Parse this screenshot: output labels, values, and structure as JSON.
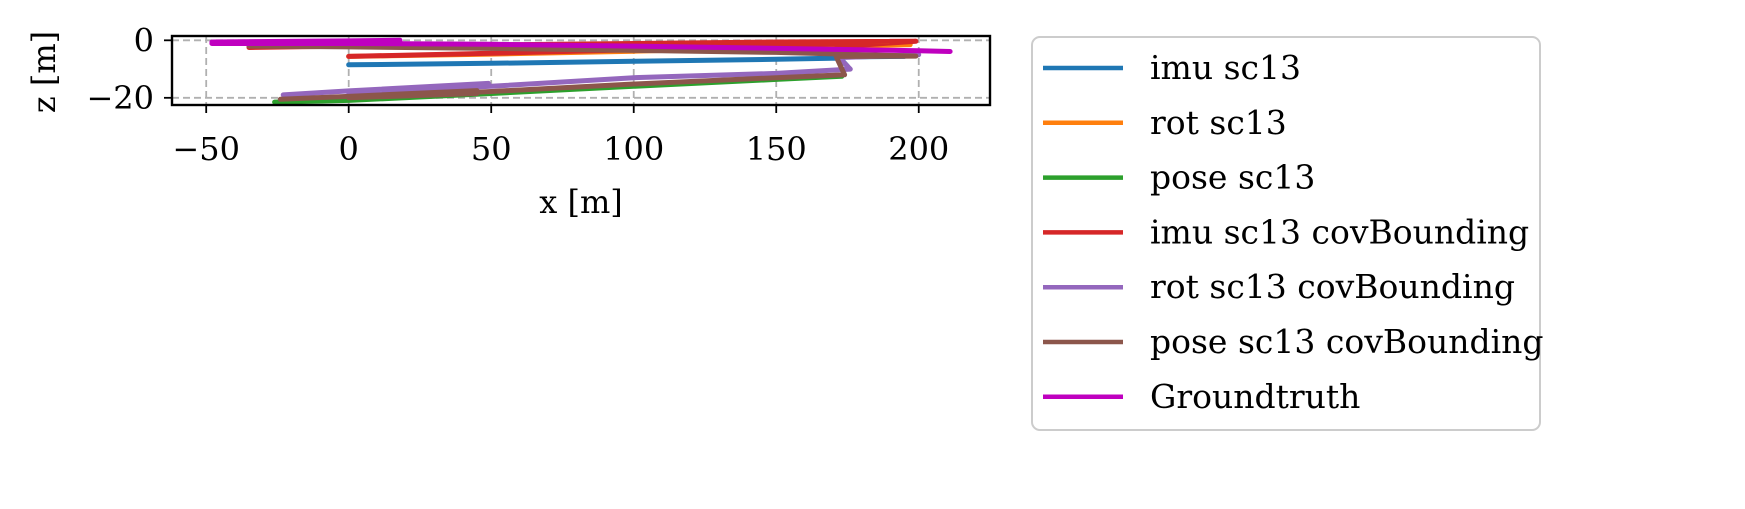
{
  "chart_data": {
    "type": "line",
    "title": "",
    "xlabel": "x [m]",
    "ylabel": "z [m]",
    "xlim": [
      -62,
      225
    ],
    "ylim": [
      -22.5,
      1.5
    ],
    "xticks": [
      -50,
      0,
      50,
      100,
      150,
      200
    ],
    "xtick_labels": [
      "−50",
      "0",
      "50",
      "100",
      "150",
      "200"
    ],
    "yticks": [
      0,
      -20
    ],
    "ytick_labels": [
      "0",
      "−20"
    ],
    "grid": true,
    "legend_position": "outside-right",
    "series": [
      {
        "name": "imu sc13",
        "color": "#1f77b4",
        "x": [
          0,
          50,
          100,
          150,
          172,
          175,
          172,
          195
        ],
        "z": [
          -8.5,
          -8,
          -7.3,
          -6.6,
          -6.2,
          -9,
          -5.8,
          -5.6
        ]
      },
      {
        "name": "rot sc13",
        "color": "#ff7f0e",
        "x": [
          0,
          50,
          100,
          150,
          197
        ],
        "z": [
          -5.6,
          -4.8,
          -3.8,
          -2.6,
          -1.5
        ]
      },
      {
        "name": "pose sc13",
        "color": "#2ca02c",
        "x": [
          -26,
          0,
          50,
          100,
          150,
          173
        ],
        "z": [
          -21.5,
          -20.9,
          -18.5,
          -16,
          -13.6,
          -12.5
        ]
      },
      {
        "name": "imu sc13 covBounding",
        "color": "#d62728",
        "x": [
          0,
          50,
          100,
          150,
          170,
          175,
          199,
          150,
          100,
          50,
          0,
          -35
        ],
        "z": [
          -5.6,
          -4.5,
          -3.3,
          -2,
          -1.3,
          -2,
          -0.3,
          -0.6,
          -1.1,
          -1.6,
          -2,
          -2.5
        ]
      },
      {
        "name": "rot sc13 covBounding",
        "color": "#9467bd",
        "x": [
          -23,
          0,
          49,
          49,
          0,
          50,
          100,
          150,
          176,
          172,
          200
        ],
        "z": [
          -19,
          -17.6,
          -15,
          -16,
          -18.2,
          -16,
          -13,
          -11.5,
          -10,
          -6,
          -5
        ]
      },
      {
        "name": "pose sc13 covBounding",
        "color": "#8c564b",
        "x": [
          -24,
          0,
          45,
          45,
          0,
          50,
          100,
          150,
          174,
          171,
          199,
          150,
          100,
          50,
          0,
          -35
        ],
        "z": [
          -20.5,
          -19.5,
          -17.5,
          -18.5,
          -20,
          -17.8,
          -15.2,
          -13,
          -12,
          -5.6,
          -5.5,
          -4.2,
          -3.5,
          -2.8,
          -2.3,
          -2
        ]
      },
      {
        "name": "Groundtruth",
        "color": "#bf00bf",
        "x": [
          -48,
          0,
          18,
          18,
          -48,
          0,
          50,
          100,
          150,
          200,
          211
        ],
        "z": [
          -0.6,
          -0.2,
          0,
          -0.8,
          -1.1,
          -1.1,
          -1.4,
          -2,
          -2.8,
          -3.6,
          -3.9
        ]
      }
    ]
  }
}
